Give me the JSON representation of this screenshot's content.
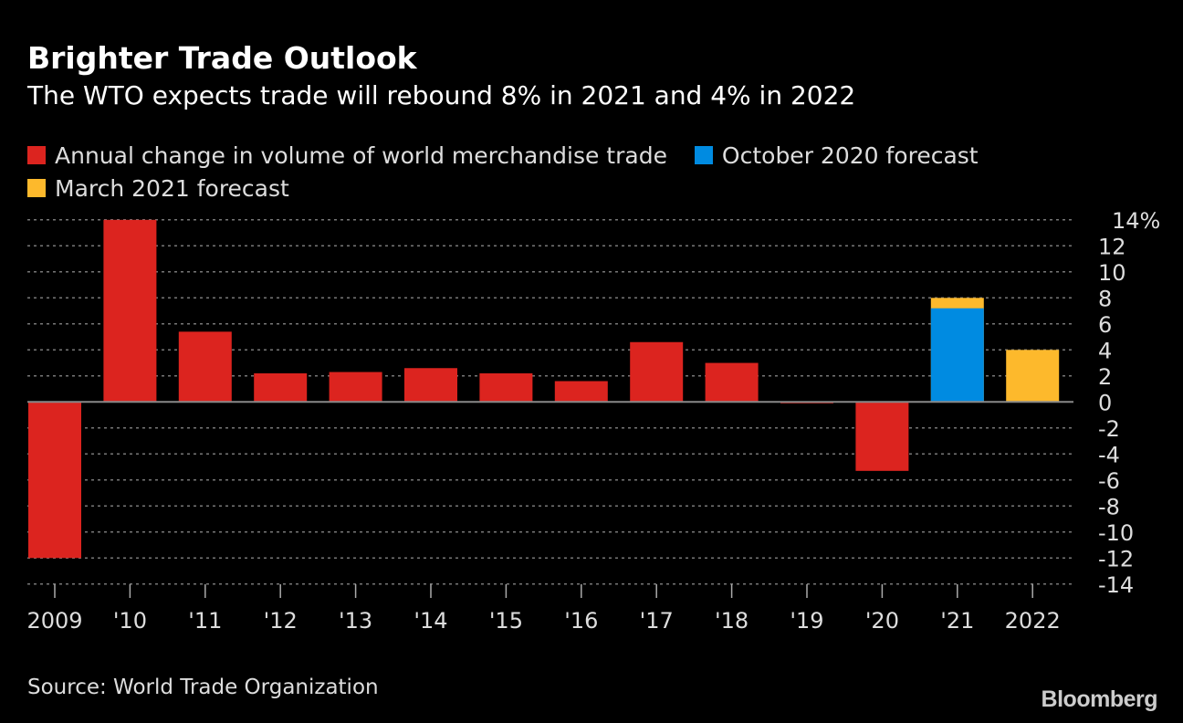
{
  "chart_data": {
    "type": "bar",
    "title": "Brighter Trade Outlook",
    "subtitle": "The WTO expects trade will rebound 8% in 2021 and 4% in 2022",
    "categories": [
      "2009",
      "'10",
      "'11",
      "'12",
      "'13",
      "'14",
      "'15",
      "'16",
      "'17",
      "'18",
      "'19",
      "'20",
      "'21",
      "2022"
    ],
    "series": [
      {
        "name": "Annual change in volume of world merchandise trade",
        "color": "#dc241f",
        "values": [
          -12.0,
          14.0,
          5.4,
          2.2,
          2.3,
          2.6,
          2.2,
          1.6,
          4.6,
          3.0,
          -0.1,
          -5.3,
          null,
          null
        ]
      },
      {
        "name": "October 2020 forecast",
        "color": "#008be1",
        "values": [
          null,
          null,
          null,
          null,
          null,
          null,
          null,
          null,
          null,
          null,
          null,
          null,
          7.2,
          null
        ]
      },
      {
        "name": "March 2021 forecast",
        "color": "#fdb92c",
        "values": [
          null,
          null,
          null,
          null,
          null,
          null,
          null,
          null,
          null,
          null,
          null,
          null,
          8.0,
          4.0
        ]
      }
    ],
    "yticks": [
      "14%",
      "12",
      "10",
      "8",
      "6",
      "4",
      "2",
      "0",
      "-2",
      "-4",
      "-6",
      "-8",
      "-10",
      "-12",
      "-14"
    ],
    "ylim": [
      -14,
      14
    ],
    "grid": true,
    "legend_position": "top-left",
    "source": "Source: World Trade Organization",
    "brand": "Bloomberg"
  }
}
